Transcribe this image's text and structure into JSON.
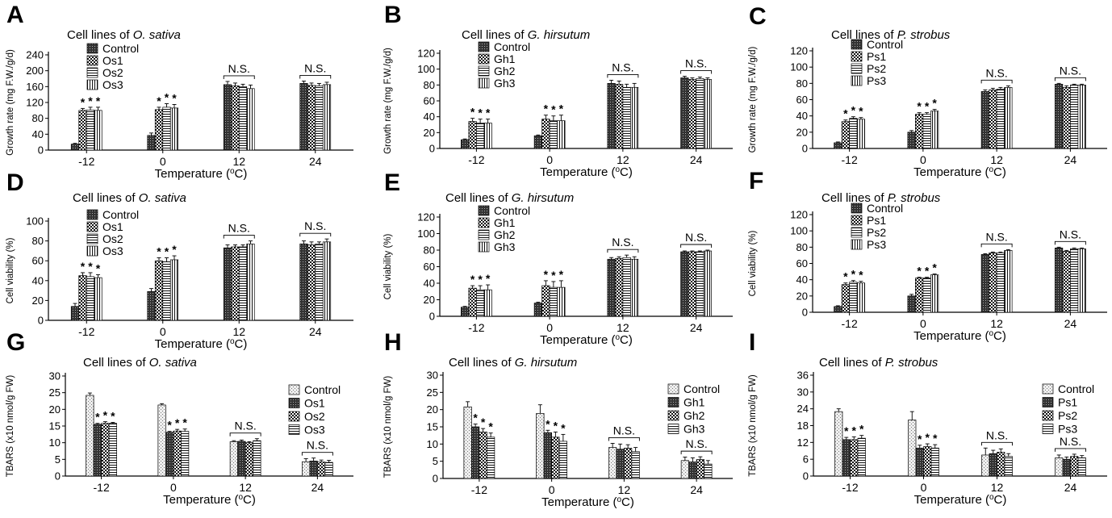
{
  "figure": {
    "xlabel_prefix": "Temperature (",
    "xlabel_deg": "o",
    "xlabel_suffix": "C)"
  },
  "chart_data": [
    {
      "panel": "A",
      "type": "bar",
      "title_prefix": "Cell lines of ",
      "title_species": "O. sativa",
      "ylabel": "Growth rate (mg F.W./g/d)",
      "xlabel": "Temperature (oC)",
      "categories": [
        "-12",
        "0",
        "12",
        "24"
      ],
      "ylim": [
        0,
        240
      ],
      "yticks": [
        "0",
        "40",
        "80",
        "120",
        "160",
        "200",
        "240"
      ],
      "legend_position": "top-left",
      "series": [
        {
          "name": "Control",
          "pattern": "dark",
          "values": [
            15,
            37,
            165,
            168
          ],
          "errors": [
            2,
            6,
            8,
            6
          ]
        },
        {
          "name": "Os1",
          "pattern": "check",
          "values": [
            100,
            102,
            162,
            163
          ],
          "errors": [
            5,
            6,
            7,
            6
          ]
        },
        {
          "name": "Os2",
          "pattern": "hline",
          "values": [
            101,
            108,
            160,
            162
          ],
          "errors": [
            7,
            9,
            6,
            6
          ]
        },
        {
          "name": "Os3",
          "pattern": "vline",
          "values": [
            100,
            106,
            155,
            165
          ],
          "errors": [
            8,
            9,
            9,
            6
          ]
        }
      ],
      "significance": {
        "star": "*",
        "ns": "N.S.",
        "star_groups": [
          0,
          1
        ],
        "ns_groups": [
          2,
          3
        ]
      }
    },
    {
      "panel": "B",
      "type": "bar",
      "title_prefix": "Cell lines of ",
      "title_species": "G. hirsutum",
      "ylabel": "Growth rate (mg F.W./g/d)",
      "xlabel": "Temperature (oC)",
      "categories": [
        "-12",
        "0",
        "12",
        "24"
      ],
      "ylim": [
        0,
        120
      ],
      "yticks": [
        "0",
        "20",
        "40",
        "60",
        "80",
        "100",
        "120"
      ],
      "legend_position": "top-left",
      "series": [
        {
          "name": "Control",
          "pattern": "dark",
          "values": [
            11,
            16,
            82,
            89
          ],
          "errors": [
            1,
            1,
            4,
            2
          ]
        },
        {
          "name": "Gh1",
          "pattern": "check",
          "values": [
            34,
            37,
            81,
            87
          ],
          "errors": [
            4,
            5,
            4,
            2
          ]
        },
        {
          "name": "Gh2",
          "pattern": "hline",
          "values": [
            32,
            35,
            77,
            88
          ],
          "errors": [
            5,
            6,
            4,
            2
          ]
        },
        {
          "name": "Gh3",
          "pattern": "vline",
          "values": [
            32,
            35,
            77,
            87
          ],
          "errors": [
            5,
            7,
            5,
            2
          ]
        }
      ],
      "significance": {
        "star": "*",
        "ns": "N.S.",
        "star_groups": [
          0,
          1
        ],
        "ns_groups": [
          2,
          3
        ]
      }
    },
    {
      "panel": "C",
      "type": "bar",
      "title_prefix": "Cell lines of ",
      "title_species": "P. strobus",
      "ylabel": "Growth rate (mg F.W./g/d)",
      "xlabel": "Temperature (oC)",
      "categories": [
        "-12",
        "0",
        "12",
        "24"
      ],
      "ylim": [
        0,
        120
      ],
      "yticks": [
        "0",
        "20",
        "40",
        "60",
        "80",
        "100",
        "120"
      ],
      "legend_position": "top-left",
      "series": [
        {
          "name": "Control",
          "pattern": "dark",
          "values": [
            7,
            20,
            70,
            79
          ],
          "errors": [
            1,
            2,
            2,
            1
          ]
        },
        {
          "name": "Ps1",
          "pattern": "check",
          "values": [
            33,
            42,
            72,
            75
          ],
          "errors": [
            2,
            2,
            2,
            2
          ]
        },
        {
          "name": "Ps2",
          "pattern": "hline",
          "values": [
            37,
            42,
            73,
            78
          ],
          "errors": [
            2,
            2,
            2,
            1
          ]
        },
        {
          "name": "Ps3",
          "pattern": "vline",
          "values": [
            36,
            46,
            75,
            78
          ],
          "errors": [
            2,
            2,
            2,
            1
          ]
        }
      ],
      "significance": {
        "star": "*",
        "ns": "N.S.",
        "star_groups": [
          0,
          1
        ],
        "ns_groups": [
          2,
          3
        ]
      }
    },
    {
      "panel": "D",
      "type": "bar",
      "title_prefix": "Cell lines of ",
      "title_species": "O. sativa",
      "ylabel": "Cell viability (%)",
      "xlabel": "Temperature (oC)",
      "categories": [
        "-12",
        "0",
        "12",
        "24"
      ],
      "ylim": [
        0,
        100
      ],
      "yticks": [
        "0",
        "20",
        "40",
        "60",
        "80",
        "100"
      ],
      "legend_position": "top-left",
      "series": [
        {
          "name": "Control",
          "pattern": "dark",
          "values": [
            14,
            29,
            73,
            77
          ],
          "errors": [
            3,
            3,
            3,
            3
          ]
        },
        {
          "name": "Os1",
          "pattern": "check",
          "values": [
            45,
            60,
            74,
            76
          ],
          "errors": [
            3,
            3,
            2,
            3
          ]
        },
        {
          "name": "Os2",
          "pattern": "hline",
          "values": [
            44,
            59,
            74,
            77
          ],
          "errors": [
            4,
            4,
            2,
            2
          ]
        },
        {
          "name": "Os3",
          "pattern": "vline",
          "values": [
            43,
            61,
            77,
            79
          ],
          "errors": [
            3,
            4,
            3,
            3
          ]
        }
      ],
      "significance": {
        "star": "*",
        "ns": "N.S.",
        "star_groups": [
          0,
          1
        ],
        "ns_groups": [
          2,
          3
        ]
      }
    },
    {
      "panel": "E",
      "type": "bar",
      "title_prefix": "Cell lines of ",
      "title_species": "G. hirsutum",
      "ylabel": "Cell viability (%)",
      "xlabel": "Temperature (oC)",
      "categories": [
        "-12",
        "0",
        "12",
        "24"
      ],
      "ylim": [
        0,
        120
      ],
      "yticks": [
        "0",
        "20",
        "40",
        "60",
        "80",
        "100",
        "120"
      ],
      "legend_position": "top-left",
      "series": [
        {
          "name": "Control",
          "pattern": "dark",
          "values": [
            11,
            16,
            69,
            78
          ],
          "errors": [
            1,
            1,
            2,
            1
          ]
        },
        {
          "name": "Gh1",
          "pattern": "check",
          "values": [
            34,
            37,
            70,
            78
          ],
          "errors": [
            3,
            6,
            2,
            1
          ]
        },
        {
          "name": "Gh2",
          "pattern": "hline",
          "values": [
            32,
            35,
            71,
            78
          ],
          "errors": [
            5,
            7,
            3,
            1
          ]
        },
        {
          "name": "Gh3",
          "pattern": "vline",
          "values": [
            32,
            35,
            69,
            79
          ],
          "errors": [
            6,
            8,
            3,
            1
          ]
        }
      ],
      "significance": {
        "star": "*",
        "ns": "N.S.",
        "star_groups": [
          0,
          1
        ],
        "ns_groups": [
          2,
          3
        ]
      }
    },
    {
      "panel": "F",
      "type": "bar",
      "title_prefix": "Cell lines of ",
      "title_species": "P. strobus",
      "ylabel": "Cell viability (%)",
      "xlabel": "Temperature (oC)",
      "categories": [
        "-12",
        "0",
        "12",
        "24"
      ],
      "ylim": [
        0,
        120
      ],
      "yticks": [
        "0",
        "20",
        "40",
        "60",
        "80",
        "100",
        "120"
      ],
      "legend_position": "top-left",
      "series": [
        {
          "name": "Control",
          "pattern": "dark",
          "values": [
            7,
            20,
            71,
            79
          ],
          "errors": [
            1,
            2,
            1,
            1
          ]
        },
        {
          "name": "Ps1",
          "pattern": "check",
          "values": [
            34,
            42,
            73,
            75
          ],
          "errors": [
            2,
            1,
            1,
            1
          ]
        },
        {
          "name": "Ps2",
          "pattern": "hline",
          "values": [
            37,
            42,
            73,
            78
          ],
          "errors": [
            2,
            1,
            1,
            1
          ]
        },
        {
          "name": "Ps3",
          "pattern": "vline",
          "values": [
            36,
            46,
            76,
            78
          ],
          "errors": [
            2,
            1,
            1,
            1
          ]
        }
      ],
      "significance": {
        "star": "*",
        "ns": "N.S.",
        "star_groups": [
          0,
          1
        ],
        "ns_groups": [
          2,
          3
        ]
      }
    },
    {
      "panel": "G",
      "type": "bar",
      "title_prefix": "Cell lines of ",
      "title_species": "O. sativa",
      "ylabel": "TBARS (x10 nmol/g FW)",
      "xlabel": "Temperature (oC)",
      "categories": [
        "-12",
        "0",
        "12",
        "24"
      ],
      "ylim": [
        0,
        30
      ],
      "yticks": [
        "0",
        "5",
        "10",
        "15",
        "20",
        "25",
        "30"
      ],
      "legend_position": "right",
      "series": [
        {
          "name": "Control",
          "pattern": "dots",
          "values": [
            24.2,
            21.3,
            10.3,
            4.3
          ],
          "errors": [
            0.7,
            0.4,
            0.3,
            0.9
          ]
        },
        {
          "name": "Os1",
          "pattern": "dark",
          "values": [
            15.5,
            13.1,
            10.4,
            4.5
          ],
          "errors": [
            0.3,
            0.3,
            0.4,
            0.9
          ]
        },
        {
          "name": "Os2",
          "pattern": "check",
          "values": [
            15.8,
            13.5,
            10.0,
            4.2
          ],
          "errors": [
            0.5,
            0.5,
            0.3,
            0.6
          ]
        },
        {
          "name": "Os3",
          "pattern": "hline",
          "values": [
            15.8,
            13.4,
            10.6,
            4.1
          ],
          "errors": [
            0.3,
            0.7,
            0.6,
            0.6
          ]
        }
      ],
      "significance": {
        "star": "*",
        "ns": "N.S.",
        "star_groups": [
          0,
          1
        ],
        "ns_groups": [
          2,
          3
        ]
      }
    },
    {
      "panel": "H",
      "type": "bar",
      "title_prefix": "Cell lines of ",
      "title_species": "G. hirsutum",
      "ylabel": "TBARS (x10 nmol/g FW)",
      "xlabel": "Temperature (oC)",
      "categories": [
        "-12",
        "0",
        "12",
        "24"
      ],
      "ylim": [
        0,
        30
      ],
      "yticks": [
        "0",
        "5",
        "10",
        "15",
        "20",
        "25",
        "30"
      ],
      "legend_position": "right",
      "series": [
        {
          "name": "Control",
          "pattern": "dots",
          "values": [
            20.8,
            18.9,
            9.0,
            5.2
          ],
          "errors": [
            1.5,
            2.5,
            1.2,
            1.0
          ]
        },
        {
          "name": "Gh1",
          "pattern": "dark",
          "values": [
            15.0,
            13.3,
            8.5,
            4.8
          ],
          "errors": [
            0.8,
            0.7,
            1.5,
            1.2
          ]
        },
        {
          "name": "Gh2",
          "pattern": "check",
          "values": [
            13.5,
            12.0,
            8.8,
            5.5
          ],
          "errors": [
            1.0,
            1.5,
            1.0,
            0.8
          ]
        },
        {
          "name": "Gh3",
          "pattern": "hline",
          "values": [
            12.0,
            10.8,
            7.8,
            4.2
          ],
          "errors": [
            1.2,
            2.0,
            1.2,
            1.0
          ]
        }
      ],
      "significance": {
        "star": "*",
        "ns": "N.S.",
        "star_groups": [
          0,
          1
        ],
        "ns_groups": [
          2,
          3
        ]
      }
    },
    {
      "panel": "I",
      "type": "bar",
      "title_prefix": "Cell lines of ",
      "title_species": "P. strobus",
      "ylabel": "TBARS (x10 nmol/g FW)",
      "xlabel": "Temperature (oC)",
      "categories": [
        "-12",
        "0",
        "12",
        "24"
      ],
      "ylim": [
        0,
        36
      ],
      "yticks": [
        "0",
        "6",
        "12",
        "18",
        "24",
        "30",
        "36"
      ],
      "legend_position": "right",
      "series": [
        {
          "name": "Control",
          "pattern": "dots",
          "values": [
            23.0,
            20.0,
            7.5,
            6.5
          ],
          "errors": [
            1.0,
            3.0,
            2.5,
            1.0
          ]
        },
        {
          "name": "Ps1",
          "pattern": "dark",
          "values": [
            13.0,
            10.0,
            8.0,
            6.0
          ],
          "errors": [
            0.8,
            1.0,
            1.2,
            0.8
          ]
        },
        {
          "name": "Ps2",
          "pattern": "check",
          "values": [
            13.0,
            10.5,
            8.5,
            7.0
          ],
          "errors": [
            1.0,
            1.0,
            1.2,
            0.8
          ]
        },
        {
          "name": "Ps3",
          "pattern": "hline",
          "values": [
            13.5,
            10.0,
            7.0,
            6.5
          ],
          "errors": [
            1.0,
            1.2,
            1.0,
            0.8
          ]
        }
      ],
      "significance": {
        "star": "*",
        "ns": "N.S.",
        "star_groups": [
          0,
          1
        ],
        "ns_groups": [
          2,
          3
        ]
      }
    }
  ]
}
